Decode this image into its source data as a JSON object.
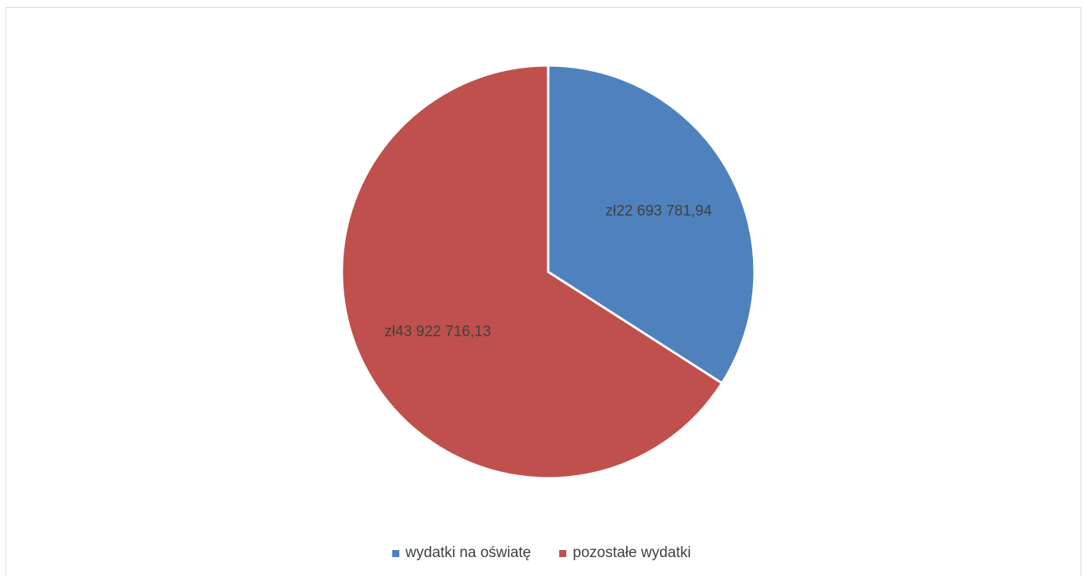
{
  "chart_data": {
    "type": "pie",
    "title": "",
    "categories": [
      "wydatki na oświatę",
      "pozostałe wydatki"
    ],
    "values": [
      22693781.94,
      43922716.13
    ],
    "value_labels": [
      "zł22 693 781,94",
      "zł43 922 716,13"
    ],
    "colors": [
      "#4f81bd",
      "#c0504d"
    ],
    "start_angle_deg": 0,
    "direction": "clockwise",
    "legend_placement": "bottom"
  }
}
